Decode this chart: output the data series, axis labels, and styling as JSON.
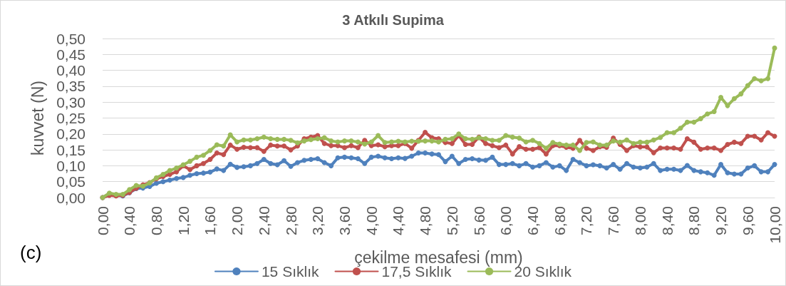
{
  "chart_data": {
    "type": "line",
    "title": "3 Atkılı Supima",
    "xlabel": "çekilme mesafesi (mm)",
    "ylabel": "kuvvet (N)",
    "annotations": [
      "(c)"
    ],
    "x": [
      0,
      0.1,
      0.2,
      0.3,
      0.4,
      0.5,
      0.6,
      0.7,
      0.8,
      0.9,
      1,
      1.1,
      1.2,
      1.3,
      1.4,
      1.5,
      1.6,
      1.7,
      1.8,
      1.9,
      2,
      2.1,
      2.2,
      2.3,
      2.4,
      2.5,
      2.6,
      2.7,
      2.8,
      2.9,
      3,
      3.1,
      3.2,
      3.3,
      3.4,
      3.5,
      3.6,
      3.7,
      3.8,
      3.9,
      4,
      4.1,
      4.2,
      4.3,
      4.4,
      4.5,
      4.6,
      4.7,
      4.8,
      4.9,
      5,
      5.1,
      5.2,
      5.3,
      5.4,
      5.5,
      5.6,
      5.7,
      5.8,
      5.9,
      6,
      6.1,
      6.2,
      6.3,
      6.4,
      6.5,
      6.6,
      6.7,
      6.8,
      6.9,
      7,
      7.1,
      7.2,
      7.3,
      7.4,
      7.5,
      7.6,
      7.7,
      7.8,
      7.9,
      8,
      8.1,
      8.2,
      8.3,
      8.4,
      8.5,
      8.6,
      8.7,
      8.8,
      8.9,
      9,
      9.1,
      9.2,
      9.3,
      9.4,
      9.5,
      9.6,
      9.7,
      9.8,
      9.9,
      10
    ],
    "series": [
      {
        "name": "15 Sıklık",
        "color": "#4f81bd",
        "values": [
          0,
          0.01,
          0.008,
          0.005,
          0.015,
          0.028,
          0.03,
          0.035,
          0.045,
          0.05,
          0.055,
          0.06,
          0.063,
          0.07,
          0.075,
          0.077,
          0.08,
          0.09,
          0.085,
          0.105,
          0.095,
          0.097,
          0.1,
          0.107,
          0.12,
          0.107,
          0.103,
          0.116,
          0.098,
          0.11,
          0.117,
          0.12,
          0.122,
          0.11,
          0.1,
          0.125,
          0.127,
          0.125,
          0.122,
          0.107,
          0.127,
          0.13,
          0.125,
          0.122,
          0.125,
          0.123,
          0.13,
          0.14,
          0.14,
          0.137,
          0.135,
          0.113,
          0.13,
          0.107,
          0.12,
          0.122,
          0.118,
          0.117,
          0.127,
          0.104,
          0.104,
          0.107,
          0.1,
          0.107,
          0.096,
          0.1,
          0.11,
          0.096,
          0.1,
          0.085,
          0.12,
          0.11,
          0.1,
          0.103,
          0.1,
          0.093,
          0.104,
          0.089,
          0.107,
          0.096,
          0.093,
          0.096,
          0.107,
          0.085,
          0.089,
          0.089,
          0.085,
          0.101,
          0.085,
          0.081,
          0.078,
          0.07,
          0.104,
          0.078,
          0.074,
          0.074,
          0.093,
          0.1,
          0.081,
          0.081,
          0.104
        ]
      },
      {
        "name": "17,5 Sıklık",
        "color": "#c0504d",
        "values": [
          0,
          0.007,
          0.005,
          0.007,
          0.016,
          0.029,
          0.04,
          0.047,
          0.059,
          0.066,
          0.073,
          0.081,
          0.1,
          0.088,
          0.1,
          0.107,
          0.12,
          0.14,
          0.135,
          0.165,
          0.152,
          0.158,
          0.157,
          0.157,
          0.145,
          0.165,
          0.162,
          0.162,
          0.15,
          0.162,
          0.185,
          0.19,
          0.195,
          0.17,
          0.163,
          0.163,
          0.157,
          0.163,
          0.157,
          0.18,
          0.163,
          0.166,
          0.16,
          0.163,
          0.163,
          0.17,
          0.155,
          0.18,
          0.205,
          0.188,
          0.185,
          0.173,
          0.17,
          0.195,
          0.167,
          0.167,
          0.19,
          0.17,
          0.163,
          0.157,
          0.165,
          0.137,
          0.16,
          0.152,
          0.152,
          0.157,
          0.137,
          0.163,
          0.163,
          0.158,
          0.155,
          0.18,
          0.155,
          0.148,
          0.16,
          0.158,
          0.187,
          0.167,
          0.148,
          0.163,
          0.159,
          0.159,
          0.141,
          0.156,
          0.156,
          0.156,
          0.152,
          0.185,
          0.174,
          0.152,
          0.156,
          0.156,
          0.148,
          0.167,
          0.174,
          0.17,
          0.193,
          0.193,
          0.181,
          0.204,
          0.193
        ]
      },
      {
        "name": "20 Sıklık",
        "color": "#9bbb59",
        "values": [
          0,
          0.014,
          0.01,
          0.01,
          0.025,
          0.038,
          0.036,
          0.046,
          0.062,
          0.073,
          0.085,
          0.093,
          0.103,
          0.114,
          0.127,
          0.133,
          0.148,
          0.166,
          0.162,
          0.197,
          0.175,
          0.181,
          0.181,
          0.185,
          0.19,
          0.185,
          0.183,
          0.183,
          0.18,
          0.172,
          0.178,
          0.182,
          0.185,
          0.188,
          0.178,
          0.175,
          0.178,
          0.178,
          0.175,
          0.168,
          0.175,
          0.195,
          0.173,
          0.175,
          0.177,
          0.175,
          0.177,
          0.177,
          0.178,
          0.178,
          0.175,
          0.183,
          0.185,
          0.2,
          0.185,
          0.183,
          0.188,
          0.185,
          0.18,
          0.18,
          0.195,
          0.19,
          0.187,
          0.175,
          0.18,
          0.17,
          0.155,
          0.173,
          0.168,
          0.165,
          0.165,
          0.148,
          0.173,
          0.175,
          0.165,
          0.165,
          0.178,
          0.174,
          0.181,
          0.17,
          0.174,
          0.174,
          0.181,
          0.189,
          0.204,
          0.204,
          0.218,
          0.237,
          0.237,
          0.248,
          0.263,
          0.27,
          0.315,
          0.289,
          0.311,
          0.326,
          0.352,
          0.374,
          0.367,
          0.374,
          0.47
        ]
      }
    ],
    "xlim": [
      0,
      10
    ],
    "xticks": [
      {
        "value": 0,
        "label": "0,00"
      },
      {
        "value": 0.4,
        "label": "0,40"
      },
      {
        "value": 0.8,
        "label": "0,80"
      },
      {
        "value": 1.2,
        "label": "1,20"
      },
      {
        "value": 1.6,
        "label": "1,60"
      },
      {
        "value": 2,
        "label": "2,00"
      },
      {
        "value": 2.4,
        "label": "2,40"
      },
      {
        "value": 2.8,
        "label": "2,80"
      },
      {
        "value": 3.2,
        "label": "3,20"
      },
      {
        "value": 3.6,
        "label": "3,60"
      },
      {
        "value": 4,
        "label": "4,00"
      },
      {
        "value": 4.4,
        "label": "4,40"
      },
      {
        "value": 4.8,
        "label": "4,80"
      },
      {
        "value": 5.2,
        "label": "5,20"
      },
      {
        "value": 5.6,
        "label": "5,60"
      },
      {
        "value": 6,
        "label": "6,00"
      },
      {
        "value": 6.4,
        "label": "6,40"
      },
      {
        "value": 6.8,
        "label": "6,80"
      },
      {
        "value": 7.2,
        "label": "7,20"
      },
      {
        "value": 7.6,
        "label": "7,60"
      },
      {
        "value": 8,
        "label": "8,00"
      },
      {
        "value": 8.4,
        "label": "8,40"
      },
      {
        "value": 8.8,
        "label": "8,80"
      },
      {
        "value": 9.2,
        "label": "9,20"
      },
      {
        "value": 9.6,
        "label": "9,60"
      },
      {
        "value": 10,
        "label": "10,00"
      }
    ],
    "ylim": [
      0,
      0.5
    ],
    "yticks": [
      {
        "value": 0,
        "label": "0,00"
      },
      {
        "value": 0.05,
        "label": "0,05"
      },
      {
        "value": 0.1,
        "label": "0,10"
      },
      {
        "value": 0.15,
        "label": "0,15"
      },
      {
        "value": 0.2,
        "label": "0,20"
      },
      {
        "value": 0.25,
        "label": "0,25"
      },
      {
        "value": 0.3,
        "label": "0,30"
      },
      {
        "value": 0.35,
        "label": "0,35"
      },
      {
        "value": 0.4,
        "label": "0,40"
      },
      {
        "value": 0.45,
        "label": "0,45"
      },
      {
        "value": 0.5,
        "label": "0,50"
      }
    ],
    "grid": "y",
    "legend": "bottom",
    "marker": "circle",
    "line_style": "solid"
  }
}
